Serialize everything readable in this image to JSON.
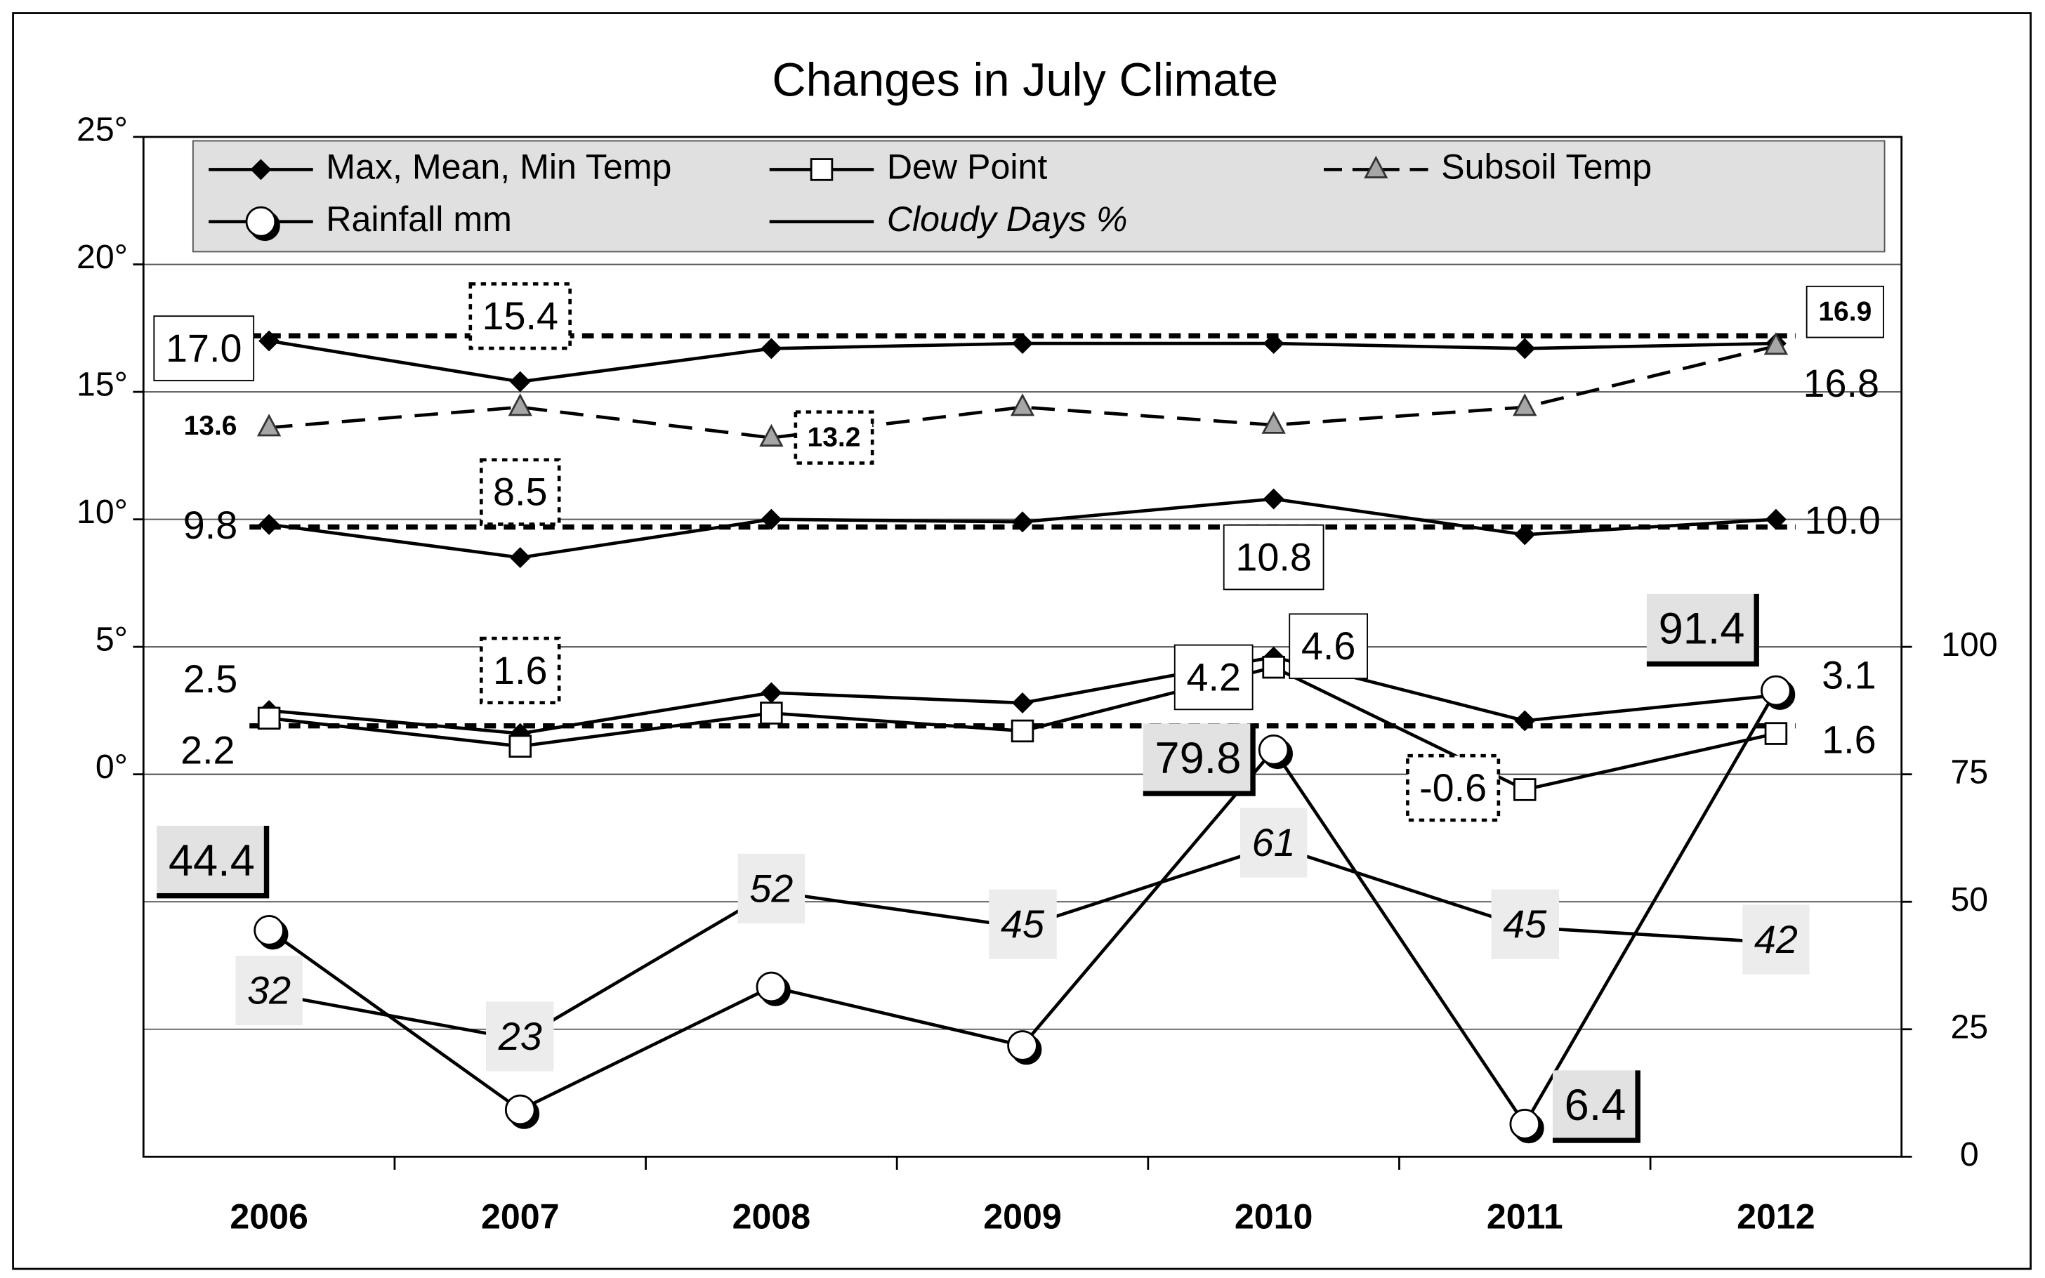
{
  "chart_data": {
    "type": "line",
    "title": "Changes in July Climate",
    "categories": [
      "2006",
      "2007",
      "2008",
      "2009",
      "2010",
      "2011",
      "2012"
    ],
    "ylim": [
      -15,
      25
    ],
    "yticks": [
      {
        "value": 0,
        "label": "0°"
      },
      {
        "value": 5,
        "label": "5°"
      },
      {
        "value": 10,
        "label": "10°"
      },
      {
        "value": 15,
        "label": "15°"
      },
      {
        "value": 20,
        "label": "20°"
      },
      {
        "value": 25,
        "label": "25°"
      }
    ],
    "y2lim": [
      0,
      200
    ],
    "y2ticks": [
      0,
      25,
      50,
      75,
      100
    ],
    "grid": true,
    "reference_lines": [
      17.2,
      9.7,
      1.9
    ],
    "series": [
      {
        "name": "Max, Mean, Min Temp",
        "color": "#000000",
        "marker": "diamond",
        "lines": [
          {
            "values": [
              17.0,
              15.4,
              16.7,
              16.9,
              16.9,
              16.7,
              16.9
            ],
            "value_labels": [
              "17.0",
              "15.4",
              null,
              null,
              null,
              null,
              "16.9"
            ]
          },
          {
            "values": [
              9.8,
              8.5,
              10.0,
              9.9,
              10.8,
              9.4,
              10.0
            ],
            "value_labels": [
              "9.8",
              "8.5",
              null,
              null,
              "10.8",
              null,
              "10.0"
            ]
          },
          {
            "values": [
              2.5,
              1.6,
              3.2,
              2.8,
              4.6,
              2.1,
              3.1
            ],
            "value_labels": [
              "2.5",
              "1.6",
              null,
              null,
              "4.6",
              null,
              "3.1"
            ]
          }
        ]
      },
      {
        "name": "Dew Point",
        "color": "#000000",
        "marker": "square",
        "values": [
          2.2,
          1.1,
          2.4,
          1.7,
          4.2,
          -0.6,
          1.6
        ],
        "value_labels": [
          "2.2",
          null,
          null,
          null,
          "4.2",
          "-0.6",
          "1.6"
        ]
      },
      {
        "name": "Subsoil Temp",
        "color": "#000000",
        "marker": "triangle",
        "marker_color": "#a6a6a6",
        "dash": true,
        "values": [
          13.6,
          14.4,
          13.2,
          14.4,
          13.7,
          14.4,
          16.8
        ],
        "value_labels": [
          "13.6",
          null,
          "13.2",
          null,
          null,
          null,
          "16.8"
        ]
      },
      {
        "name": "Rainfall mm",
        "color": "#000000",
        "marker": "circle",
        "axis": "y2",
        "values": [
          44.4,
          9.2,
          33.3,
          21.8,
          79.8,
          6.4,
          91.4
        ],
        "value_labels": [
          "44.4",
          null,
          null,
          null,
          "79.8",
          "6.4",
          "91.4"
        ]
      },
      {
        "name": "Cloudy Days %",
        "color": "#000000",
        "marker": "none",
        "axis": "y2",
        "italic": true,
        "values": [
          32,
          23,
          52,
          45,
          61,
          45,
          42
        ]
      }
    ]
  }
}
